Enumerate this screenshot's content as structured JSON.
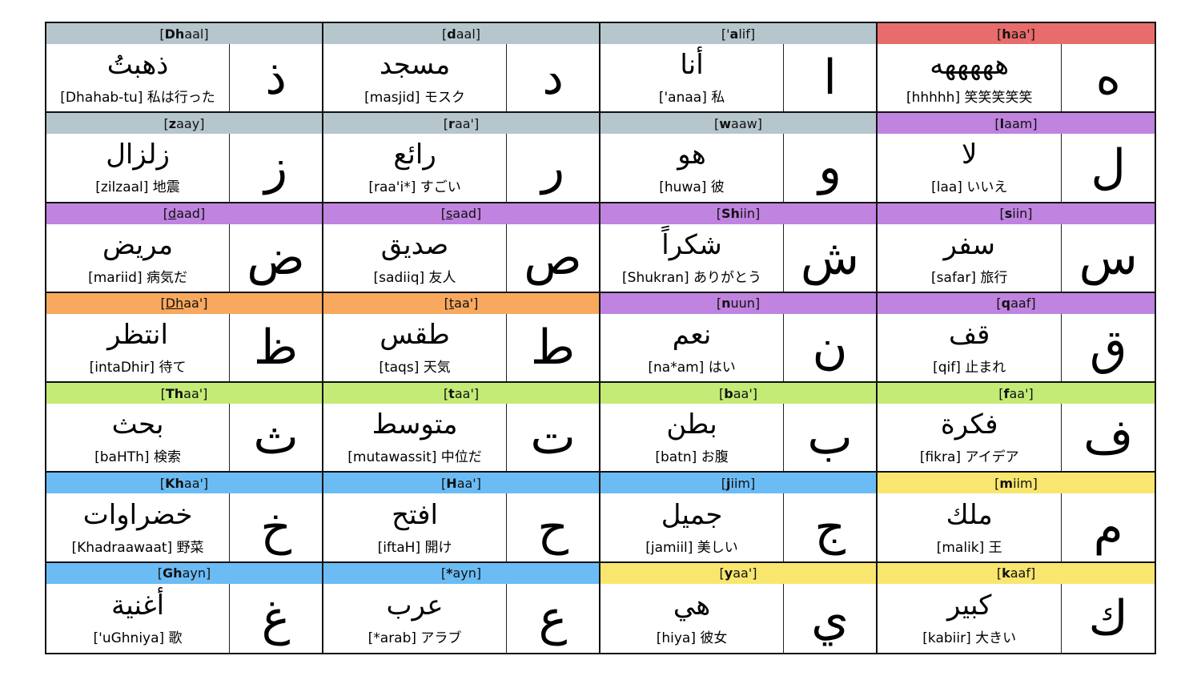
{
  "colors": {
    "gray": "#b6c6cd",
    "red": "#e76c6b",
    "purple": "#c083e0",
    "orange": "#f8a95e",
    "green": "#c3eb76",
    "blue": "#6bbcf5",
    "yellow": "#f8e66f"
  },
  "rows": [
    [
      {
        "header": {
          "pre": "[",
          "bold": "Dh",
          "ul": "",
          "post": "aal]"
        },
        "color": "gray",
        "word": "ذهبتُ",
        "gloss": "[Dhahab-tu] 私は行った",
        "letter": "ذ"
      },
      {
        "header": {
          "pre": "[",
          "bold": "d",
          "ul": "",
          "post": "aal]"
        },
        "color": "gray",
        "word": "مسجد",
        "gloss": "[masjid] モスク",
        "letter": "د"
      },
      {
        "header": {
          "pre": "['",
          "bold": "a",
          "ul": "",
          "post": "lif]"
        },
        "color": "gray",
        "word": "أنا",
        "gloss": "['anaa] 私",
        "letter": "ا"
      },
      {
        "header": {
          "pre": "[",
          "bold": "h",
          "ul": "",
          "post": "aa']"
        },
        "color": "red",
        "word": "هههههه",
        "gloss": "[hhhhh] 笑笑笑笑笑",
        "letter": "ه"
      }
    ],
    [
      {
        "header": {
          "pre": "[",
          "bold": "z",
          "ul": "",
          "post": "aay]"
        },
        "color": "gray",
        "word": "زلزال",
        "gloss": "[zilzaal] 地震",
        "letter": "ز"
      },
      {
        "header": {
          "pre": "[",
          "bold": "r",
          "ul": "",
          "post": "aa']"
        },
        "color": "gray",
        "word": "رائع",
        "gloss": "[raa'i*] すごい",
        "letter": "ر"
      },
      {
        "header": {
          "pre": "[",
          "bold": "w",
          "ul": "",
          "post": "aaw]"
        },
        "color": "gray",
        "word": "هو",
        "gloss": "[huwa] 彼",
        "letter": "و"
      },
      {
        "header": {
          "pre": "[",
          "bold": "l",
          "ul": "",
          "post": "aam]"
        },
        "color": "purple",
        "word": "لا",
        "gloss": "[laa] いいえ",
        "letter": "ل"
      }
    ],
    [
      {
        "header": {
          "pre": "[",
          "bold": "",
          "ul": "d",
          "post": "aad]"
        },
        "color": "purple",
        "word": "مريض",
        "gloss": "[mariid] 病気だ",
        "letter": "ض"
      },
      {
        "header": {
          "pre": "[",
          "bold": "",
          "ul": "s",
          "post": "aad]"
        },
        "color": "purple",
        "word": "صديق",
        "gloss": "[sadiiq] 友人",
        "letter": "ص"
      },
      {
        "header": {
          "pre": "[",
          "bold": "Sh",
          "ul": "",
          "post": "iin]"
        },
        "color": "purple",
        "word": "شكراً",
        "gloss": "[Shukran] ありがとう",
        "letter": "ش"
      },
      {
        "header": {
          "pre": "[",
          "bold": "s",
          "ul": "",
          "post": "iin]"
        },
        "color": "purple",
        "word": "سفر",
        "gloss": "[safar] 旅行",
        "letter": "س"
      }
    ],
    [
      {
        "header": {
          "pre": "[",
          "bold": "",
          "ul": "Dh",
          "post": "aa']"
        },
        "color": "orange",
        "word": "انتظر",
        "gloss": "[intaDhir] 待て",
        "letter": "ظ"
      },
      {
        "header": {
          "pre": "[",
          "bold": "",
          "ul": "t",
          "post": "aa']"
        },
        "color": "orange",
        "word": "طقس",
        "gloss": "[taqs] 天気",
        "letter": "ط"
      },
      {
        "header": {
          "pre": "[",
          "bold": "n",
          "ul": "",
          "post": "uun]"
        },
        "color": "purple",
        "word": "نعم",
        "gloss": "[na*am] はい",
        "letter": "ن"
      },
      {
        "header": {
          "pre": "[",
          "bold": "q",
          "ul": "",
          "post": "aaf]"
        },
        "color": "purple",
        "word": "قف",
        "gloss": "[qif] 止まれ",
        "letter": "ق"
      }
    ],
    [
      {
        "header": {
          "pre": "[",
          "bold": "Th",
          "ul": "",
          "post": "aa']"
        },
        "color": "green",
        "word": "بحث",
        "gloss": "[baHTh] 検索",
        "letter": "ث"
      },
      {
        "header": {
          "pre": "[",
          "bold": "t",
          "ul": "",
          "post": "aa']"
        },
        "color": "green",
        "word": "متوسط",
        "gloss": "[mutawassit] 中位だ",
        "letter": "ت"
      },
      {
        "header": {
          "pre": "[",
          "bold": "b",
          "ul": "",
          "post": "aa']"
        },
        "color": "green",
        "word": "بطن",
        "gloss": "[batn] お腹",
        "letter": "ب"
      },
      {
        "header": {
          "pre": "[",
          "bold": "f",
          "ul": "",
          "post": "aa']"
        },
        "color": "green",
        "word": "فكرة",
        "gloss": "[fikra] アイデア",
        "letter": "ف"
      }
    ],
    [
      {
        "header": {
          "pre": "[",
          "bold": "Kh",
          "ul": "",
          "post": "aa']"
        },
        "color": "blue",
        "word": "خضراوات",
        "gloss": "[Khadraawaat] 野菜",
        "letter": "خ"
      },
      {
        "header": {
          "pre": "[",
          "bold": "H",
          "ul": "",
          "post": "aa']"
        },
        "color": "blue",
        "word": "افتح",
        "gloss": "[iftaH] 開け",
        "letter": "ح"
      },
      {
        "header": {
          "pre": "[",
          "bold": "j",
          "ul": "",
          "post": "iim]"
        },
        "color": "blue",
        "word": "جميل",
        "gloss": "[jamiil] 美しい",
        "letter": "ج"
      },
      {
        "header": {
          "pre": "[",
          "bold": "m",
          "ul": "",
          "post": "iim]"
        },
        "color": "yellow",
        "word": "ملك",
        "gloss": "[malik] 王",
        "letter": "م"
      }
    ],
    [
      {
        "header": {
          "pre": "[",
          "bold": "Gh",
          "ul": "",
          "post": "ayn]"
        },
        "color": "blue",
        "word": "أغنية",
        "gloss": "['uGhniya] 歌",
        "letter": "غ"
      },
      {
        "header": {
          "pre": "[",
          "bold": "*",
          "ul": "",
          "post": "ayn]"
        },
        "color": "blue",
        "word": "عرب",
        "gloss": "[*arab] アラブ",
        "letter": "ع"
      },
      {
        "header": {
          "pre": "[",
          "bold": "y",
          "ul": "",
          "post": "aa']"
        },
        "color": "yellow",
        "word": "هي",
        "gloss": "[hiya] 彼女",
        "letter": "ي"
      },
      {
        "header": {
          "pre": "[",
          "bold": "k",
          "ul": "",
          "post": "aaf]"
        },
        "color": "yellow",
        "word": "كبير",
        "gloss": "[kabiir] 大きい",
        "letter": "ك"
      }
    ]
  ]
}
